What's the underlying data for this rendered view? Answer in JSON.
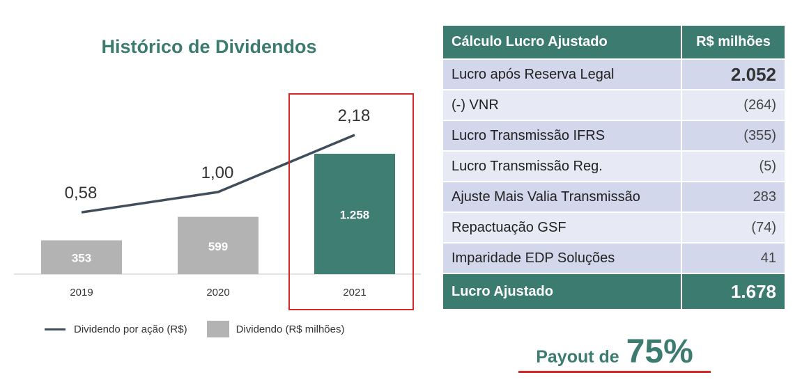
{
  "chart_data": {
    "type": "bar",
    "title": "Histórico de Dividendos",
    "categories": [
      "2019",
      "2020",
      "2021"
    ],
    "series": [
      {
        "name": "Dividendo (R$ milhões)",
        "kind": "bar",
        "values": [
          353,
          599,
          1258
        ],
        "labels": [
          "353",
          "599",
          "1.258"
        ],
        "colors": [
          "#b3b3b3",
          "#b3b3b3",
          "#3f7f73"
        ]
      },
      {
        "name": "Dividendo por ação (R$)",
        "kind": "line",
        "values": [
          0.58,
          1.0,
          2.18
        ],
        "labels": [
          "0,58",
          "1,00",
          "2,18"
        ],
        "color": "#404d5b"
      }
    ],
    "highlight_category": "2021",
    "grid": false
  },
  "legend": {
    "line_label": "Dividendo por ação (R$)",
    "bar_label": "Dividendo (R$ milhões)"
  },
  "table": {
    "header": {
      "label": "Cálculo Lucro Ajustado",
      "value": "R$ milhões"
    },
    "rows": [
      {
        "label": "Lucro  após Reserva Legal",
        "value": "2.052"
      },
      {
        "label": "(-) VNR",
        "value": "(264)"
      },
      {
        "label": "Lucro Transmissão IFRS",
        "value": "(355)"
      },
      {
        "label": "Lucro Transmissão Reg.",
        "value": "(5)"
      },
      {
        "label": "Ajuste Mais Valia Transmissão",
        "value": "283"
      },
      {
        "label": "Repactuação GSF",
        "value": "(74)"
      },
      {
        "label": "Imparidade EDP Soluções",
        "value": "41"
      }
    ],
    "footer": {
      "label": "Lucro Ajustado",
      "value": "1.678"
    }
  },
  "payout": {
    "label": "Payout de",
    "value": "75%"
  },
  "colors": {
    "accent": "#3c7b70",
    "highlight": "#d62828",
    "bar_gray": "#b3b3b3",
    "line": "#404d5b"
  }
}
